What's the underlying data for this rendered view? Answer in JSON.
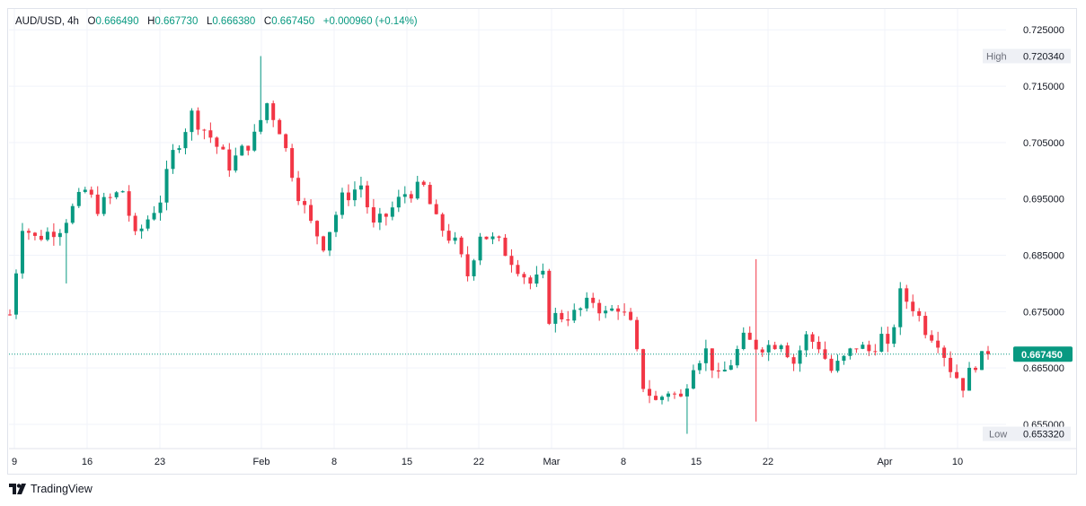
{
  "legend": {
    "symbol": "AUD/USD",
    "interval": "4h",
    "open_label": "O",
    "open": "0.666490",
    "high_label": "H",
    "high": "0.667730",
    "low_label": "L",
    "low": "0.666380",
    "close_label": "C",
    "close": "0.667450",
    "change": "+0.000960 (+0.14%)"
  },
  "markers": {
    "high_label": "High",
    "high_value": "0.720340",
    "low_label": "Low",
    "low_value": "0.653320",
    "last_value": "0.667450"
  },
  "brand": {
    "name": "TradingView"
  },
  "colors": {
    "up": "#089981",
    "down": "#f23645",
    "grid": "#f0f3fa",
    "last_tag": "#089981"
  },
  "chart_data": {
    "type": "candlestick",
    "symbol": "AUD/USD",
    "interval": "4h",
    "y_ticks": [
      0.725,
      0.715,
      0.705,
      0.695,
      0.685,
      0.675,
      0.665,
      0.655
    ],
    "y_tick_labels": [
      "0.725000",
      "0.715000",
      "0.705000",
      "0.695000",
      "0.685000",
      "0.675000",
      "0.665000",
      "0.655000"
    ],
    "ylim": [
      0.6507,
      0.7287
    ],
    "x_ticks": [
      "9",
      "16",
      "23",
      "Feb",
      "8",
      "15",
      "22",
      "Mar",
      "8",
      "15",
      "22",
      "Apr",
      "10"
    ],
    "last_price": 0.66745,
    "period_high": 0.72034,
    "period_low": 0.65332,
    "close_path": [
      [
        0,
        0.6745
      ],
      [
        2,
        0.6905
      ],
      [
        4,
        0.688
      ],
      [
        8,
        0.69
      ],
      [
        12,
        0.6965
      ],
      [
        14,
        0.6935
      ],
      [
        18,
        0.6965
      ],
      [
        20,
        0.688
      ],
      [
        24,
        0.695
      ],
      [
        26,
        0.703
      ],
      [
        29,
        0.71
      ],
      [
        32,
        0.706
      ],
      [
        35,
        0.701
      ],
      [
        39,
        0.706
      ],
      [
        41,
        0.712
      ],
      [
        43,
        0.7075
      ],
      [
        46,
        0.696
      ],
      [
        48,
        0.6905
      ],
      [
        50,
        0.687
      ],
      [
        53,
        0.695
      ],
      [
        56,
        0.6975
      ],
      [
        58,
        0.69
      ],
      [
        60,
        0.692
      ],
      [
        63,
        0.696
      ],
      [
        66,
        0.697
      ],
      [
        68,
        0.691
      ],
      [
        71,
        0.687
      ],
      [
        73,
        0.6815
      ],
      [
        75,
        0.689
      ],
      [
        78,
        0.687
      ],
      [
        81,
        0.683
      ],
      [
        83,
        0.68
      ],
      [
        85,
        0.681
      ],
      [
        86,
        0.674
      ],
      [
        90,
        0.6745
      ],
      [
        93,
        0.677
      ],
      [
        95,
        0.6745
      ],
      [
        97,
        0.676
      ],
      [
        99,
        0.6725
      ],
      [
        101,
        0.662
      ],
      [
        103,
        0.659
      ],
      [
        105,
        0.661
      ],
      [
        107,
        0.6595
      ],
      [
        109,
        0.666
      ],
      [
        111,
        0.668
      ],
      [
        113,
        0.663
      ],
      [
        115,
        0.666
      ],
      [
        117,
        0.67
      ],
      [
        119,
        0.669
      ],
      [
        121,
        0.669
      ],
      [
        123,
        0.67
      ],
      [
        125,
        0.666
      ],
      [
        127,
        0.6705
      ],
      [
        129,
        0.669
      ],
      [
        131,
        0.6645
      ],
      [
        133,
        0.6665
      ],
      [
        135,
        0.669
      ],
      [
        137,
        0.668
      ],
      [
        139,
        0.6705
      ],
      [
        140,
        0.668
      ],
      [
        142,
        0.678
      ],
      [
        144,
        0.676
      ],
      [
        146,
        0.672
      ],
      [
        148,
        0.67
      ],
      [
        150,
        0.665
      ],
      [
        152,
        0.662
      ],
      [
        154,
        0.666
      ],
      [
        156,
        0.6672
      ]
    ]
  }
}
